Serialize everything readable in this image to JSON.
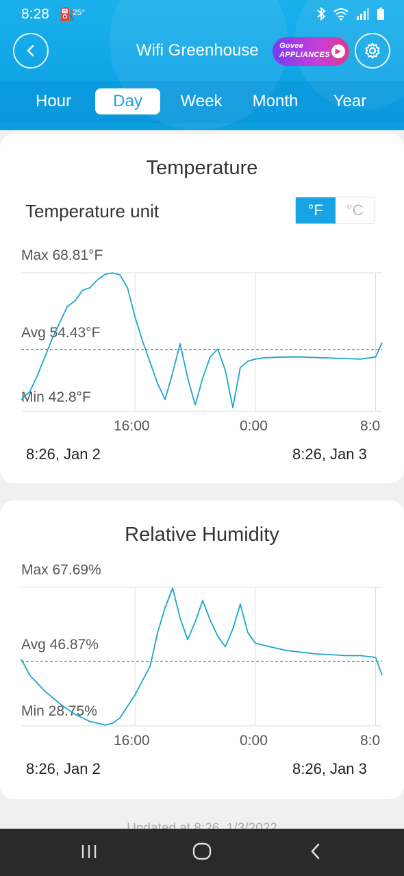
{
  "status_bar": {
    "time": "8:28",
    "temp": "25°"
  },
  "header": {
    "title": "Wifi Greenhouse",
    "promo_line1": "Govee",
    "promo_line2": "APPLIANCES"
  },
  "tabs": [
    {
      "label": "Hour",
      "active": false
    },
    {
      "label": "Day",
      "active": true
    },
    {
      "label": "Week",
      "active": false
    },
    {
      "label": "Month",
      "active": false
    },
    {
      "label": "Year",
      "active": false
    }
  ],
  "temperature": {
    "title": "Temperature",
    "unit_label": "Temperature unit",
    "units": [
      "°F",
      "°C"
    ],
    "selected_unit": "°F",
    "max_label": "Max 68.81°F",
    "avg_label": "Avg 54.43°F",
    "min_label": "Min 42.8°F",
    "start_label": "8:26,  Jan 2",
    "end_label": "8:26,  Jan 3"
  },
  "humidity": {
    "title": "Relative Humidity",
    "max_label": "Max 67.69%",
    "avg_label": "Avg 46.87%",
    "min_label": "Min 28.75%",
    "start_label": "8:26,  Jan 2",
    "end_label": "8:26,  Jan 3"
  },
  "footer": {
    "updated": "Updated at 8:26, 1/3/2022"
  },
  "chart_data": [
    {
      "type": "line",
      "title": "Temperature",
      "x_ticks": [
        "16:00",
        "0:00",
        "8:0"
      ],
      "x": [
        8.43,
        9,
        9.5,
        10,
        10.5,
        11,
        11.5,
        12,
        12.5,
        13,
        13.5,
        14,
        14.5,
        15,
        15.5,
        16,
        16.5,
        17,
        17.5,
        18,
        18.5,
        19,
        19.5,
        20,
        20.5,
        21,
        21.5,
        22,
        22.5,
        23,
        23.5,
        24,
        24.5,
        25,
        26,
        27,
        28,
        29,
        30,
        31,
        32,
        32.43
      ],
      "values": [
        45.0,
        46.5,
        49.5,
        53.0,
        56.5,
        59.5,
        62.5,
        63.5,
        65.5,
        66.0,
        67.5,
        68.5,
        68.8,
        68.4,
        66.0,
        60.5,
        56.0,
        52.0,
        48.0,
        45.0,
        50.0,
        55.5,
        49.0,
        44.0,
        49.0,
        53.0,
        54.5,
        50.5,
        43.5,
        51.0,
        52.2,
        52.6,
        52.8,
        52.9,
        53.0,
        53.0,
        52.9,
        52.8,
        52.7,
        52.6,
        53.0,
        55.7
      ],
      "avg": 54.43,
      "ylim": [
        42.8,
        68.81
      ]
    },
    {
      "type": "line",
      "title": "Relative Humidity",
      "x_ticks": [
        "16:00",
        "0:00",
        "8:0"
      ],
      "x": [
        8.43,
        9,
        10,
        11,
        12,
        13,
        14,
        14.5,
        15,
        16,
        17,
        17.5,
        18,
        18.5,
        19,
        19.5,
        20,
        20.5,
        21,
        21.5,
        22,
        22.5,
        23,
        23.5,
        24,
        25,
        26,
        27,
        28,
        29,
        30,
        31,
        32,
        32.43
      ],
      "values": [
        47.5,
        43.0,
        38.5,
        35.0,
        32.0,
        30.0,
        29.0,
        29.5,
        31.0,
        37.5,
        45.5,
        55.0,
        62.0,
        67.5,
        59.0,
        53.0,
        58.0,
        64.0,
        58.5,
        54.0,
        51.0,
        56.0,
        63.0,
        55.0,
        52.0,
        51.0,
        50.0,
        49.5,
        49.0,
        48.8,
        48.5,
        48.5,
        48.0,
        43.0
      ],
      "avg": 46.87,
      "ylim": [
        28.75,
        67.69
      ]
    }
  ]
}
